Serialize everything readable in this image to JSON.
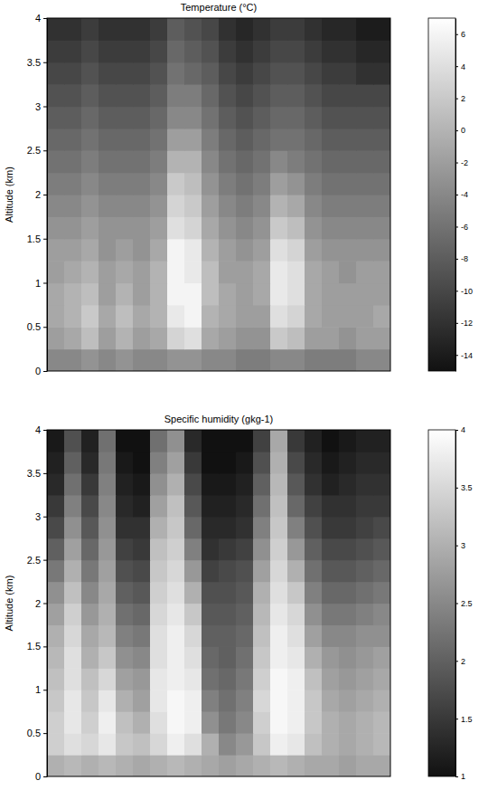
{
  "chart_data": [
    {
      "type": "heatmap",
      "title": "Temperature (°C)",
      "y_label": "Altitude (km)",
      "ylim": [
        0,
        4
      ],
      "yticks": [
        0,
        0.5,
        1,
        1.5,
        2,
        2.5,
        3,
        3.5,
        4
      ],
      "tick_labels": "y",
      "y_bins": [
        0,
        0.25,
        0.5,
        0.75,
        1,
        1.25,
        1.5,
        1.75,
        2,
        2.25,
        2.5,
        2.75,
        3,
        3.25,
        3.5,
        3.75,
        4
      ],
      "values": [
        [
          -4,
          -4,
          -3,
          -4,
          -3,
          -4,
          -4,
          -3,
          -3,
          -4,
          -4,
          -5,
          -5,
          -4,
          -4,
          -5,
          -5,
          -5,
          -4,
          -4
        ],
        [
          -2,
          -1,
          1,
          -2,
          0,
          -2,
          -1,
          3,
          4,
          -1,
          -2,
          -3,
          -3,
          2,
          1,
          -2,
          -2,
          -3,
          -2,
          -2
        ],
        [
          -1,
          0,
          2,
          -1,
          1,
          -1,
          0,
          5,
          6,
          0,
          -1,
          -2,
          -2,
          4,
          3,
          -1,
          -2,
          -2,
          -2,
          -1
        ],
        [
          -1,
          0,
          1,
          -2,
          0,
          -2,
          0,
          6,
          6,
          1,
          -1,
          -2,
          -1,
          5,
          4,
          -1,
          -2,
          -2,
          -2,
          -2
        ],
        [
          -2,
          -1,
          0,
          -2,
          -1,
          -2,
          0,
          6,
          5,
          1,
          -2,
          -2,
          -1,
          5,
          4,
          -1,
          -2,
          -3,
          -2,
          -2
        ],
        [
          -2,
          -2,
          -1,
          -3,
          -2,
          -3,
          -1,
          6,
          5,
          0,
          -2,
          -3,
          -2,
          4,
          3,
          -2,
          -3,
          -3,
          -3,
          -3
        ],
        [
          -3,
          -3,
          -2,
          -3,
          -3,
          -3,
          -2,
          4,
          3,
          -1,
          -3,
          -4,
          -3,
          2,
          1,
          -3,
          -4,
          -4,
          -4,
          -4
        ],
        [
          -4,
          -4,
          -3,
          -4,
          -4,
          -4,
          -3,
          3,
          2,
          -2,
          -4,
          -5,
          -4,
          0,
          -1,
          -4,
          -5,
          -5,
          -5,
          -5
        ],
        [
          -5,
          -5,
          -4,
          -5,
          -5,
          -5,
          -4,
          2,
          1,
          -3,
          -5,
          -6,
          -5,
          -2,
          -3,
          -5,
          -6,
          -6,
          -6,
          -6
        ],
        [
          -6,
          -6,
          -5,
          -6,
          -6,
          -6,
          -5,
          0,
          0,
          -4,
          -6,
          -7,
          -6,
          -4,
          -5,
          -6,
          -7,
          -7,
          -7,
          -7
        ],
        [
          -7,
          -7,
          -6,
          -7,
          -7,
          -7,
          -6,
          -2,
          -2,
          -5,
          -7,
          -8,
          -7,
          -6,
          -6,
          -7,
          -8,
          -8,
          -8,
          -8
        ],
        [
          -8,
          -8,
          -7,
          -8,
          -8,
          -8,
          -7,
          -4,
          -4,
          -6,
          -8,
          -9,
          -8,
          -7,
          -7,
          -8,
          -9,
          -9,
          -9,
          -9
        ],
        [
          -9,
          -9,
          -8,
          -9,
          -9,
          -9,
          -8,
          -5,
          -5,
          -7,
          -9,
          -10,
          -9,
          -8,
          -8,
          -9,
          -10,
          -10,
          -10,
          -10
        ],
        [
          -10,
          -10,
          -9,
          -10,
          -10,
          -10,
          -9,
          -6,
          -7,
          -8,
          -10,
          -11,
          -10,
          -9,
          -9,
          -10,
          -11,
          -11,
          -12,
          -12
        ],
        [
          -11,
          -11,
          -10,
          -11,
          -11,
          -11,
          -10,
          -7,
          -8,
          -9,
          -11,
          -12,
          -11,
          -10,
          -10,
          -11,
          -12,
          -12,
          -13,
          -13
        ],
        [
          -12,
          -12,
          -11,
          -12,
          -12,
          -12,
          -11,
          -8,
          -9,
          -10,
          -12,
          -13,
          -12,
          -11,
          -11,
          -12,
          -13,
          -13,
          -14,
          -14
        ]
      ],
      "colorbar_range": [
        -15,
        7
      ],
      "colorbar_ticks": [
        6,
        4,
        2,
        0,
        -2,
        -4,
        -6,
        -8,
        -10,
        -12,
        -14
      ]
    },
    {
      "type": "heatmap",
      "title": "Specific humidity (gkg-1)",
      "y_label": "Altitude (km)",
      "ylim": [
        0,
        4
      ],
      "yticks": [
        0,
        0.5,
        1,
        1.5,
        2,
        2.5,
        3,
        3.5,
        4
      ],
      "tick_labels": "y",
      "y_bins": [
        0,
        0.25,
        0.5,
        0.75,
        1,
        1.25,
        1.5,
        1.75,
        2,
        2.25,
        2.5,
        2.75,
        3,
        3.25,
        3.5,
        3.75,
        4
      ],
      "values": [
        [
          3.0,
          3.1,
          3.0,
          3.1,
          3.0,
          2.9,
          3.0,
          3.1,
          3.0,
          2.9,
          2.8,
          2.9,
          3.0,
          3.1,
          3.0,
          2.9,
          2.9,
          2.8,
          2.9,
          2.9
        ],
        [
          3.4,
          3.6,
          3.5,
          3.7,
          3.3,
          3.2,
          3.5,
          3.8,
          3.6,
          3.0,
          2.5,
          2.7,
          3.3,
          3.8,
          3.7,
          3.2,
          3.0,
          2.9,
          3.0,
          3.1
        ],
        [
          3.4,
          3.7,
          3.4,
          3.8,
          3.2,
          3.0,
          3.6,
          3.9,
          3.8,
          2.6,
          2.3,
          2.5,
          3.4,
          3.9,
          3.8,
          3.3,
          3.0,
          2.9,
          3.0,
          3.1
        ],
        [
          3.3,
          3.7,
          3.3,
          3.7,
          3.0,
          2.8,
          3.7,
          3.9,
          3.8,
          2.4,
          2.2,
          2.4,
          3.5,
          3.9,
          3.8,
          3.3,
          2.9,
          2.8,
          2.9,
          3.0
        ],
        [
          3.2,
          3.6,
          3.2,
          3.5,
          2.8,
          2.7,
          3.7,
          3.8,
          3.7,
          2.2,
          2.1,
          2.3,
          3.4,
          3.9,
          3.8,
          3.2,
          2.8,
          2.7,
          2.8,
          2.9
        ],
        [
          3.1,
          3.6,
          3.0,
          3.3,
          2.6,
          2.5,
          3.6,
          3.8,
          3.6,
          2.1,
          2.0,
          2.2,
          3.3,
          3.8,
          3.7,
          3.0,
          2.7,
          2.6,
          2.7,
          2.8
        ],
        [
          3.0,
          3.5,
          2.9,
          3.1,
          2.4,
          2.3,
          3.6,
          3.8,
          3.5,
          2.0,
          2.0,
          2.1,
          3.2,
          3.8,
          3.6,
          2.8,
          2.5,
          2.5,
          2.6,
          2.6
        ],
        [
          2.8,
          3.4,
          2.7,
          3.0,
          2.2,
          2.1,
          3.5,
          3.7,
          3.3,
          1.9,
          1.9,
          2.0,
          3.1,
          3.7,
          3.5,
          2.6,
          2.3,
          2.3,
          2.4,
          2.5
        ],
        [
          2.6,
          3.2,
          2.5,
          2.9,
          2.0,
          1.9,
          3.4,
          3.6,
          3.0,
          1.8,
          1.8,
          1.9,
          3.0,
          3.6,
          3.3,
          2.4,
          2.1,
          2.1,
          2.2,
          2.3
        ],
        [
          2.3,
          3.0,
          2.3,
          2.8,
          1.8,
          1.7,
          3.3,
          3.5,
          2.7,
          1.6,
          1.7,
          1.8,
          2.8,
          3.5,
          3.0,
          2.2,
          1.9,
          1.9,
          2.0,
          2.1
        ],
        [
          2.0,
          2.8,
          2.1,
          2.7,
          1.6,
          1.5,
          3.2,
          3.4,
          2.4,
          1.4,
          1.5,
          1.6,
          2.6,
          3.4,
          2.7,
          2.0,
          1.7,
          1.7,
          1.8,
          1.9
        ],
        [
          1.7,
          2.6,
          1.9,
          2.6,
          1.4,
          1.4,
          3.0,
          3.3,
          2.1,
          1.3,
          1.3,
          1.4,
          2.4,
          3.3,
          2.4,
          1.8,
          1.5,
          1.5,
          1.6,
          1.7
        ],
        [
          1.5,
          2.4,
          1.7,
          2.5,
          1.3,
          1.2,
          2.8,
          3.2,
          1.9,
          1.2,
          1.2,
          1.3,
          2.2,
          3.2,
          2.1,
          1.6,
          1.4,
          1.4,
          1.5,
          1.5
        ],
        [
          1.3,
          2.2,
          1.5,
          2.4,
          1.2,
          1.1,
          2.6,
          3.0,
          1.7,
          1.1,
          1.1,
          1.2,
          2.0,
          3.1,
          1.9,
          1.4,
          1.2,
          1.3,
          1.4,
          1.4
        ],
        [
          1.2,
          2.0,
          1.3,
          2.3,
          1.1,
          1.0,
          2.4,
          2.8,
          1.5,
          1.0,
          1.0,
          1.1,
          1.8,
          3.0,
          1.7,
          1.3,
          1.1,
          1.2,
          1.3,
          1.3
        ],
        [
          1.1,
          1.8,
          1.2,
          2.2,
          1.0,
          1.0,
          2.2,
          2.6,
          1.3,
          1.0,
          1.0,
          1.0,
          1.6,
          2.9,
          1.5,
          1.2,
          1.0,
          1.1,
          1.2,
          1.2
        ]
      ],
      "colorbar_range": [
        1,
        4
      ],
      "colorbar_ticks": [
        4,
        3.5,
        3,
        2.5,
        2,
        1.5,
        1
      ]
    }
  ]
}
